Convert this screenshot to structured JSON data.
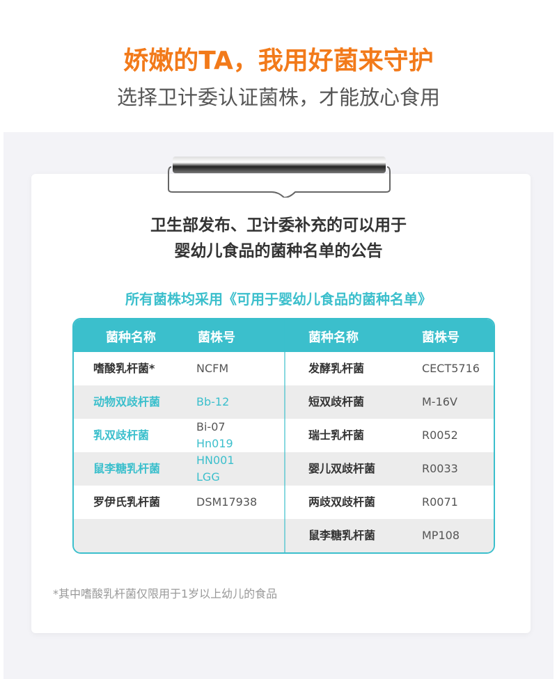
{
  "header": {
    "title": "娇嫩的TA，我用好菌来守护",
    "subtitle": "选择卫计委认证菌株，才能放心食用"
  },
  "card": {
    "heading_line1": "卫生部发布、卫计委补充的可以用于",
    "heading_line2": "婴幼儿食品的菌种名单的公告",
    "note": "所有菌株均采用《可用于婴幼儿食品的菌种名单》"
  },
  "table": {
    "headers": [
      "菌种名称",
      "菌株号",
      "菌种名称",
      "菌株号"
    ],
    "left": [
      {
        "name": "嗜酸乳杆菌*",
        "codes": [
          "NCFM"
        ],
        "highlight": false
      },
      {
        "name": "动物双歧杆菌",
        "codes": [
          "Bb-12"
        ],
        "highlight": true
      },
      {
        "name": "乳双歧杆菌",
        "codes": [
          "Bi-07",
          "Hn019"
        ],
        "highlight": true
      },
      {
        "name": "鼠李糖乳杆菌",
        "codes": [
          "HN001",
          "LGG"
        ],
        "highlight": true
      },
      {
        "name": "罗伊氏乳杆菌",
        "codes": [
          "DSM17938"
        ],
        "highlight": false
      }
    ],
    "right": [
      {
        "name": "发酵乳杆菌",
        "code": "CECT5716"
      },
      {
        "name": "短双歧杆菌",
        "code": "M-16V"
      },
      {
        "name": "瑞士乳杆菌",
        "code": "R0052"
      },
      {
        "name": "婴儿双歧杆菌",
        "code": "R0033"
      },
      {
        "name": "两歧双歧杆菌",
        "code": "R0071"
      },
      {
        "name": "鼠李糖乳杆菌",
        "code": "MP108"
      }
    ]
  },
  "footnote": "*其中嗜酸乳杆菌仅限用于1岁以上幼儿的食品",
  "colors": {
    "title": "#f27a1a",
    "accent": "#3bbfcc",
    "text": "#333333"
  }
}
